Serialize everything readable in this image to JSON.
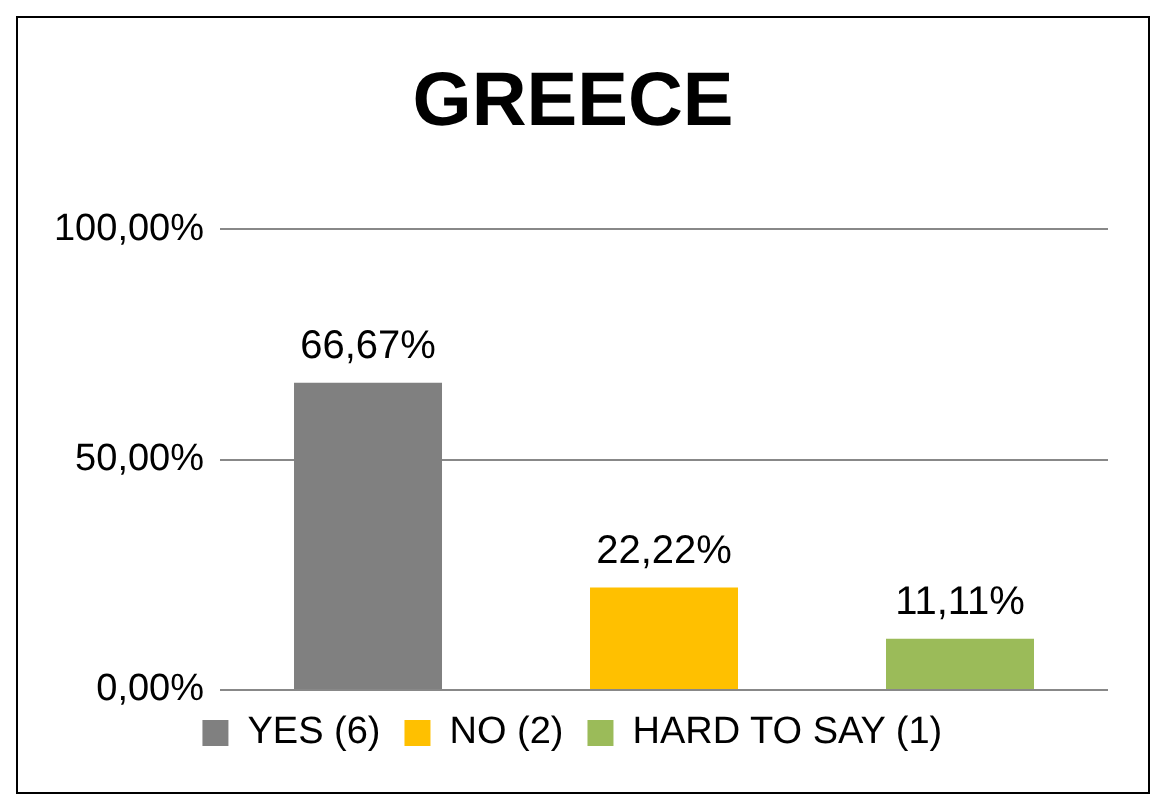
{
  "chart_data": {
    "type": "bar",
    "title": "GREECE",
    "categories": [
      null,
      null,
      null
    ],
    "series": [
      {
        "name": "YES (6)",
        "color": "#808080",
        "values": [
          66.67,
          null,
          null
        ],
        "value_labels": [
          "66,67%",
          null,
          null
        ]
      },
      {
        "name": "NO (2)",
        "color": "#ffc000",
        "values": [
          null,
          22.22,
          null
        ],
        "value_labels": [
          null,
          "22,22%",
          null
        ]
      },
      {
        "name": "HARD TO SAY (1)",
        "color": "#9bbb59",
        "values": [
          null,
          null,
          11.11
        ],
        "value_labels": [
          null,
          null,
          "11,11%"
        ]
      }
    ],
    "ylim": [
      0,
      100
    ],
    "yticks": [
      {
        "value": 0,
        "label": "0,00%"
      },
      {
        "value": 50,
        "label": "50,00%"
      },
      {
        "value": 100,
        "label": "100,00%"
      }
    ],
    "grid": "y",
    "legend": "bottom",
    "tick_labels": "y"
  }
}
